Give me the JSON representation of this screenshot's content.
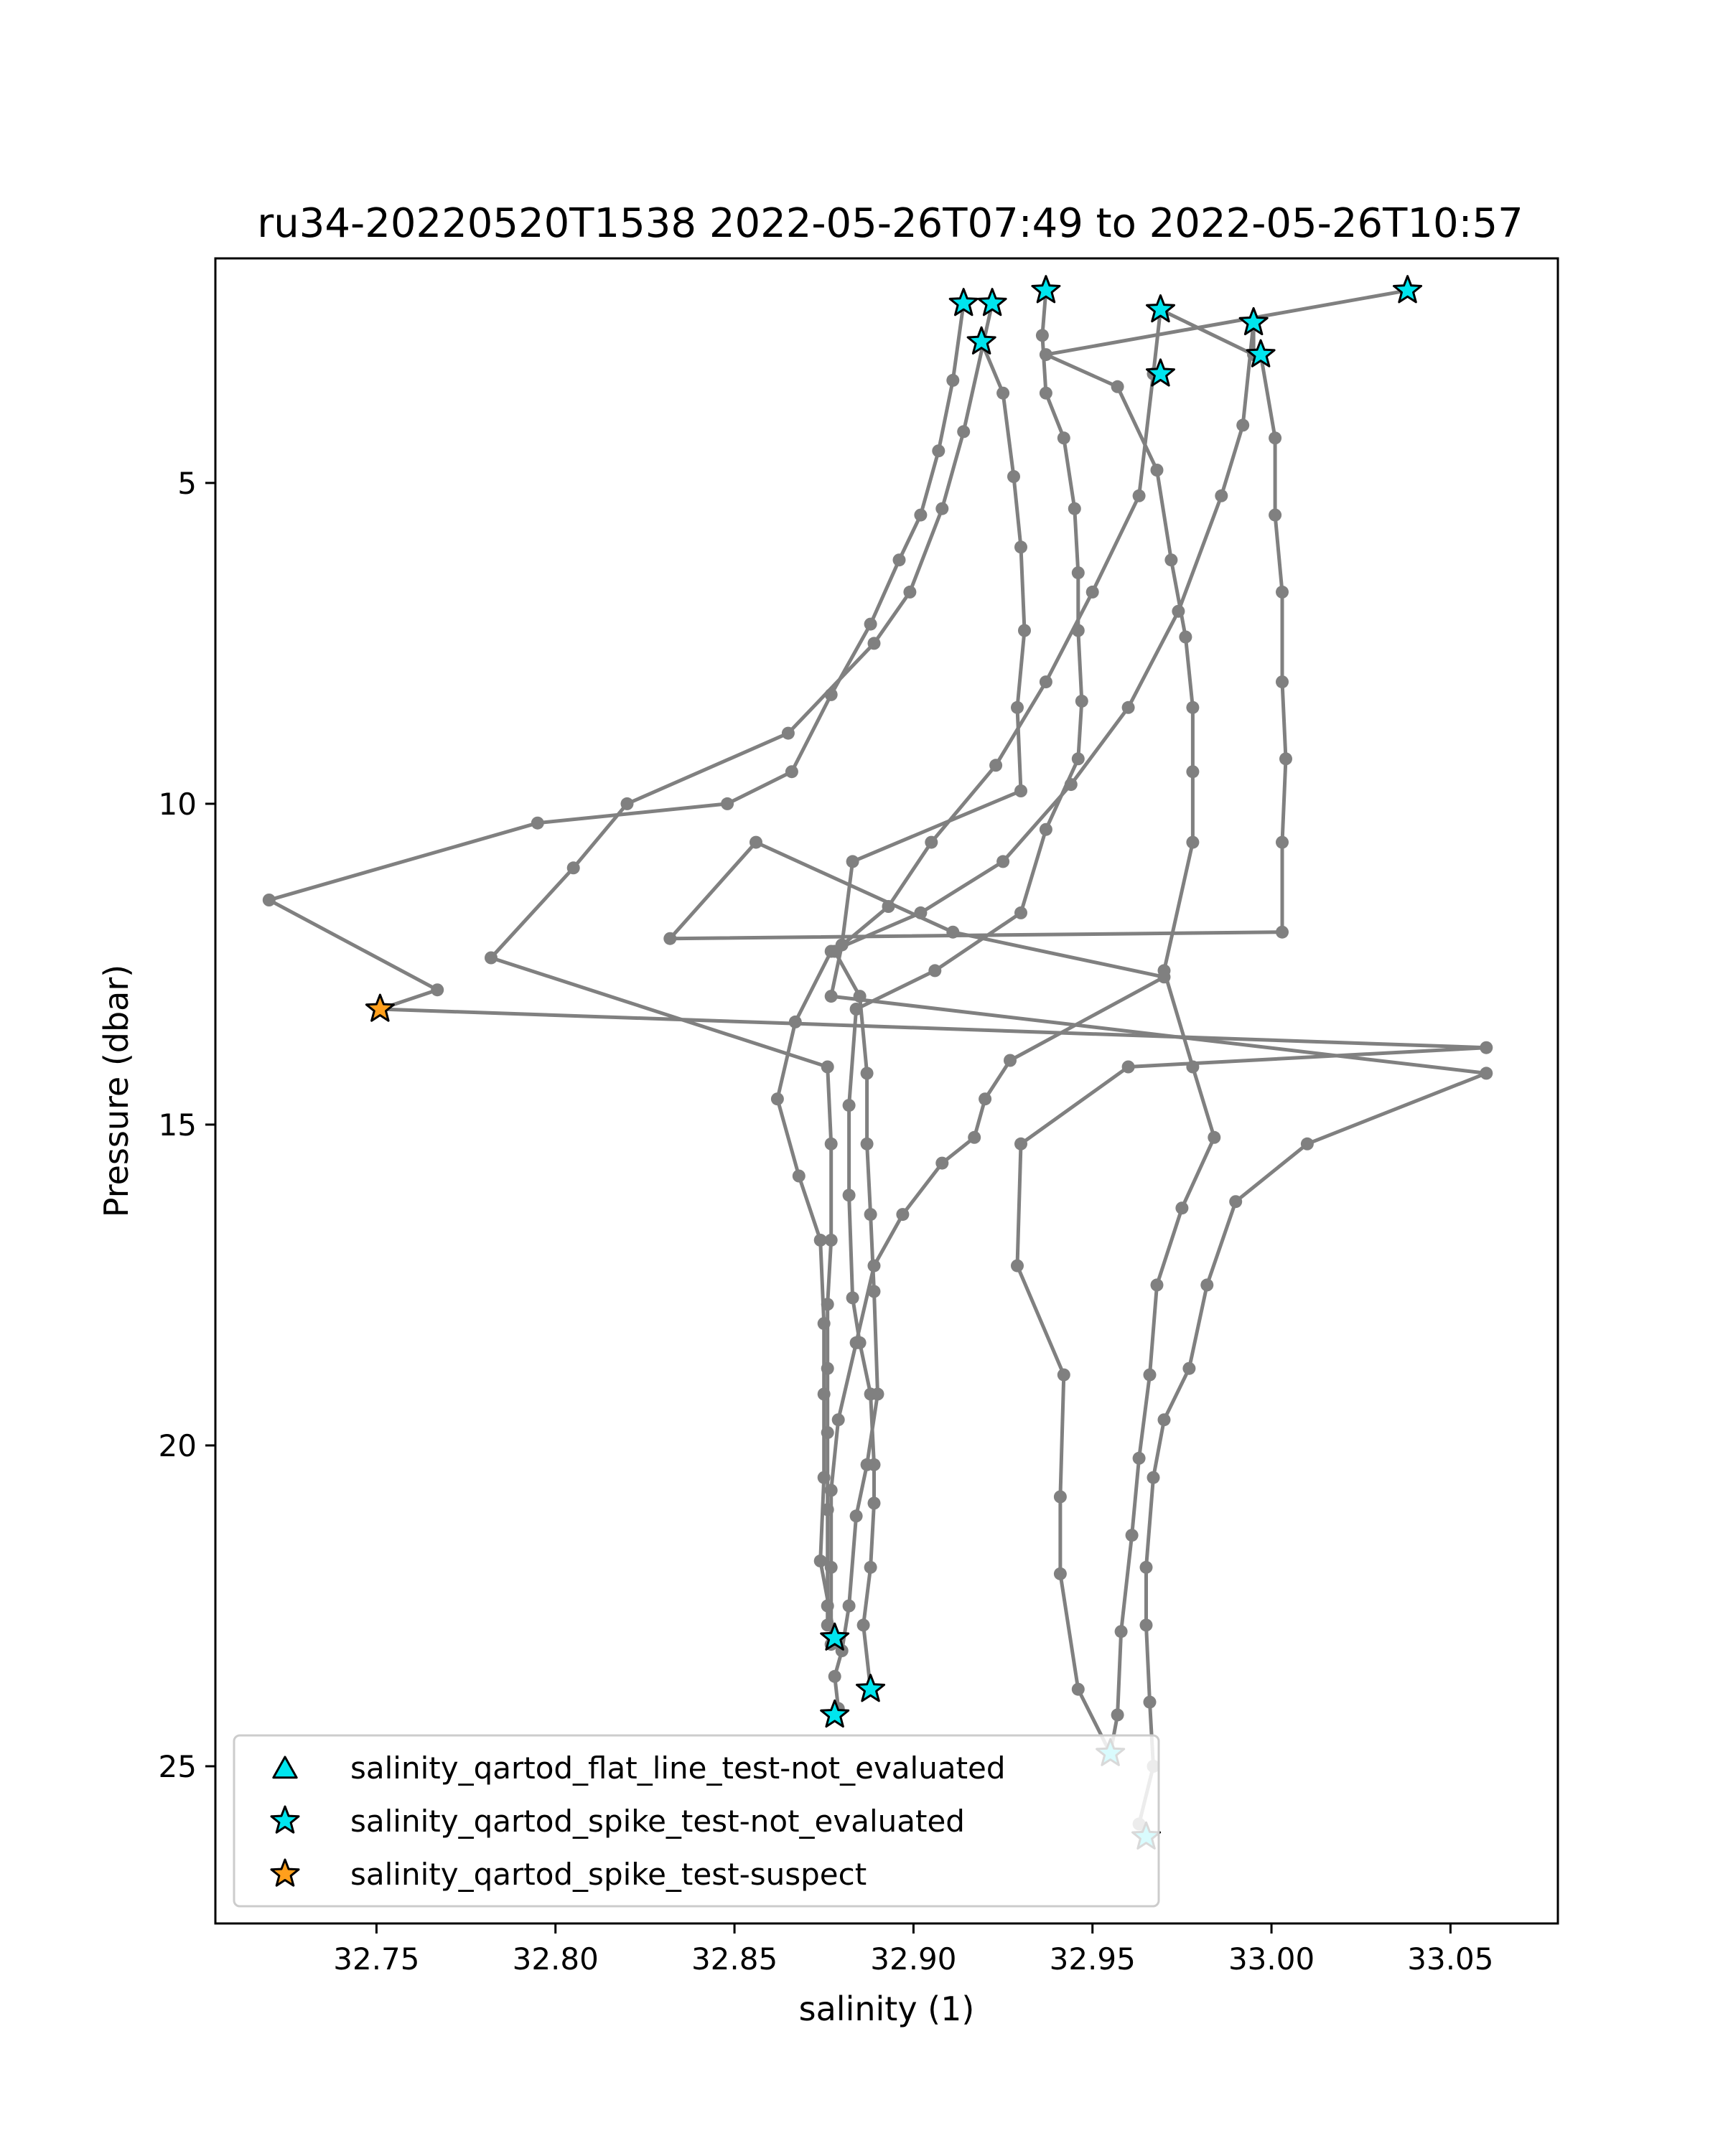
{
  "chart_data": {
    "type": "scatter",
    "title": "ru34-20220520T1538 2022-05-26T07:49 to 2022-05-26T10:57",
    "xlabel": "salinity (1)",
    "ylabel": "Pressure (dbar)",
    "xlim": [
      32.705,
      33.08
    ],
    "ylim": [
      27.45,
      1.5
    ],
    "y_inverted": true,
    "grid": false,
    "x_ticks": [
      {
        "value": 32.75,
        "label": "32.75"
      },
      {
        "value": 32.8,
        "label": "32.80"
      },
      {
        "value": 32.85,
        "label": "32.85"
      },
      {
        "value": 32.9,
        "label": "32.90"
      },
      {
        "value": 32.95,
        "label": "32.95"
      },
      {
        "value": 33.0,
        "label": "33.00"
      },
      {
        "value": 33.05,
        "label": "33.05"
      }
    ],
    "y_ticks": [
      {
        "value": 5,
        "label": "5"
      },
      {
        "value": 10,
        "label": "10"
      },
      {
        "value": 15,
        "label": "15"
      },
      {
        "value": 20,
        "label": "20"
      },
      {
        "value": 25,
        "label": "25"
      }
    ],
    "line_color": "#808080",
    "profiles": [
      {
        "points": [
          [
            32.914,
            2.2
          ],
          [
            32.911,
            3.4
          ],
          [
            32.907,
            4.5
          ],
          [
            32.902,
            5.5
          ],
          [
            32.896,
            6.2
          ],
          [
            32.888,
            7.2
          ],
          [
            32.877,
            8.3
          ],
          [
            32.866,
            9.5
          ],
          [
            32.848,
            10.0
          ],
          [
            32.795,
            10.3
          ],
          [
            32.72,
            11.5
          ],
          [
            32.767,
            12.9
          ],
          [
            32.751,
            13.2
          ],
          [
            33.06,
            13.8
          ],
          [
            32.96,
            14.1
          ],
          [
            32.93,
            15.3
          ],
          [
            32.929,
            17.2
          ],
          [
            32.942,
            18.9
          ],
          [
            32.941,
            20.8
          ],
          [
            32.941,
            22.0
          ],
          [
            32.946,
            23.8
          ],
          [
            32.955,
            24.8
          ]
        ]
      },
      {
        "points": [
          [
            32.922,
            2.2
          ],
          [
            32.914,
            4.2
          ],
          [
            32.908,
            5.4
          ],
          [
            32.899,
            6.7
          ],
          [
            32.889,
            7.5
          ],
          [
            32.865,
            8.9
          ],
          [
            32.82,
            10.0
          ],
          [
            32.805,
            11.0
          ],
          [
            32.782,
            12.4
          ],
          [
            32.876,
            14.1
          ],
          [
            32.877,
            15.3
          ],
          [
            32.877,
            16.8
          ],
          [
            32.876,
            17.8
          ],
          [
            32.876,
            18.8
          ],
          [
            32.876,
            19.8
          ],
          [
            32.876,
            21.0
          ],
          [
            32.876,
            22.5
          ],
          [
            32.876,
            22.8
          ],
          [
            32.878,
            23.0
          ]
        ]
      },
      {
        "points": [
          [
            32.919,
            2.8
          ],
          [
            32.925,
            3.6
          ],
          [
            32.928,
            4.9
          ],
          [
            32.93,
            6.0
          ],
          [
            32.931,
            7.3
          ],
          [
            32.929,
            8.5
          ],
          [
            32.93,
            9.8
          ],
          [
            32.883,
            10.9
          ],
          [
            32.88,
            12.2
          ],
          [
            32.877,
            13.0
          ],
          [
            33.06,
            14.2
          ],
          [
            33.01,
            15.3
          ],
          [
            32.99,
            16.2
          ],
          [
            32.982,
            17.5
          ],
          [
            32.977,
            18.8
          ],
          [
            32.97,
            19.6
          ],
          [
            32.967,
            20.5
          ],
          [
            32.965,
            21.9
          ],
          [
            32.965,
            22.8
          ],
          [
            32.966,
            24.0
          ],
          [
            32.967,
            25.0
          ],
          [
            32.963,
            25.9
          ],
          [
            32.965,
            26.1
          ]
        ]
      },
      {
        "points": [
          [
            32.937,
            2.0
          ],
          [
            32.936,
            2.7
          ],
          [
            32.937,
            3.6
          ],
          [
            32.942,
            4.3
          ],
          [
            32.945,
            5.4
          ],
          [
            32.946,
            6.4
          ],
          [
            32.946,
            7.3
          ],
          [
            32.947,
            8.4
          ],
          [
            32.946,
            9.3
          ],
          [
            32.937,
            10.4
          ],
          [
            32.93,
            11.7
          ],
          [
            32.906,
            12.6
          ],
          [
            32.884,
            13.2
          ],
          [
            32.882,
            14.7
          ],
          [
            32.882,
            16.1
          ],
          [
            32.883,
            17.7
          ],
          [
            32.885,
            18.4
          ],
          [
            32.888,
            19.2
          ],
          [
            32.889,
            20.3
          ],
          [
            32.889,
            20.9
          ],
          [
            32.888,
            21.9
          ],
          [
            32.886,
            22.8
          ],
          [
            32.888,
            23.8
          ]
        ]
      },
      {
        "points": [
          [
            32.969,
            2.3
          ],
          [
            32.967,
            3.3
          ],
          [
            32.963,
            5.2
          ],
          [
            32.95,
            6.7
          ],
          [
            32.937,
            8.1
          ],
          [
            32.923,
            9.4
          ],
          [
            32.905,
            10.6
          ],
          [
            32.893,
            11.6
          ],
          [
            32.878,
            12.3
          ],
          [
            32.885,
            13.0
          ],
          [
            32.887,
            14.2
          ],
          [
            32.887,
            15.3
          ],
          [
            32.888,
            16.4
          ],
          [
            32.889,
            17.6
          ],
          [
            32.89,
            19.2
          ],
          [
            32.887,
            20.3
          ],
          [
            32.884,
            21.1
          ],
          [
            32.882,
            22.5
          ],
          [
            32.88,
            23.2
          ],
          [
            32.878,
            23.6
          ],
          [
            32.879,
            24.1
          ]
        ]
      },
      {
        "points": [
          [
            32.997,
            3.0
          ],
          [
            33.001,
            4.3
          ],
          [
            33.001,
            5.5
          ],
          [
            33.003,
            6.7
          ],
          [
            33.003,
            8.1
          ],
          [
            33.004,
            9.3
          ],
          [
            33.003,
            10.6
          ],
          [
            33.003,
            12.0
          ],
          [
            32.832,
            12.1
          ],
          [
            32.856,
            10.6
          ],
          [
            32.911,
            12.0
          ],
          [
            32.97,
            12.7
          ],
          [
            32.927,
            14.0
          ],
          [
            32.92,
            14.6
          ],
          [
            32.917,
            15.2
          ],
          [
            32.908,
            15.6
          ],
          [
            32.897,
            16.4
          ],
          [
            32.889,
            17.2
          ],
          [
            32.884,
            18.4
          ],
          [
            32.879,
            19.6
          ],
          [
            32.877,
            20.7
          ],
          [
            32.877,
            21.9
          ],
          [
            32.877,
            23.1
          ]
        ]
      },
      {
        "points": [
          [
            33.038,
            2.0
          ],
          [
            32.937,
            3.0
          ],
          [
            32.957,
            3.5
          ],
          [
            32.968,
            4.8
          ],
          [
            32.972,
            6.2
          ],
          [
            32.976,
            7.4
          ],
          [
            32.978,
            8.5
          ],
          [
            32.978,
            9.5
          ],
          [
            32.978,
            10.6
          ],
          [
            32.97,
            12.6
          ],
          [
            32.978,
            14.1
          ],
          [
            32.984,
            15.2
          ],
          [
            32.975,
            16.3
          ],
          [
            32.968,
            17.5
          ],
          [
            32.966,
            18.9
          ],
          [
            32.963,
            20.2
          ],
          [
            32.961,
            21.4
          ],
          [
            32.958,
            22.9
          ],
          [
            32.957,
            24.2
          ],
          [
            32.955,
            24.8
          ]
        ]
      },
      {
        "points": [
          [
            32.969,
            2.3
          ],
          [
            32.995,
            3.0
          ],
          [
            32.995,
            2.5
          ],
          [
            32.992,
            4.1
          ],
          [
            32.986,
            5.2
          ],
          [
            32.974,
            7.0
          ],
          [
            32.96,
            8.5
          ],
          [
            32.944,
            9.7
          ],
          [
            32.925,
            10.9
          ],
          [
            32.902,
            11.7
          ],
          [
            32.877,
            12.3
          ],
          [
            32.867,
            13.4
          ],
          [
            32.862,
            14.6
          ],
          [
            32.868,
            15.8
          ],
          [
            32.874,
            16.8
          ],
          [
            32.875,
            18.1
          ],
          [
            32.875,
            19.2
          ],
          [
            32.875,
            20.5
          ],
          [
            32.874,
            21.8
          ],
          [
            32.878,
            23.0
          ]
        ]
      }
    ],
    "flagged_points": [
      {
        "x": 32.914,
        "y": 2.2,
        "series": 1
      },
      {
        "x": 32.922,
        "y": 2.2,
        "series": 1
      },
      {
        "x": 32.937,
        "y": 2.0,
        "series": 1
      },
      {
        "x": 32.969,
        "y": 2.3,
        "series": 1
      },
      {
        "x": 33.038,
        "y": 2.0,
        "series": 1
      },
      {
        "x": 32.919,
        "y": 2.8,
        "series": 1
      },
      {
        "x": 32.995,
        "y": 2.5,
        "series": 1
      },
      {
        "x": 32.969,
        "y": 3.3,
        "series": 1
      },
      {
        "x": 32.997,
        "y": 3.0,
        "series": 1
      },
      {
        "x": 32.751,
        "y": 13.2,
        "series": 2
      },
      {
        "x": 32.878,
        "y": 23.0,
        "series": 1
      },
      {
        "x": 32.888,
        "y": 23.8,
        "series": 1
      },
      {
        "x": 32.878,
        "y": 24.2,
        "series": 1
      },
      {
        "x": 32.955,
        "y": 24.8,
        "series": 1
      },
      {
        "x": 32.965,
        "y": 26.1,
        "series": 1
      }
    ],
    "series": [
      {
        "name": "salinity_qartod_flat_line_test-not_evaluated",
        "marker": "triangle",
        "color": "#00e5ee"
      },
      {
        "name": "salinity_qartod_spike_test-not_evaluated",
        "marker": "star",
        "color": "#00e5ee"
      },
      {
        "name": "salinity_qartod_spike_test-suspect",
        "marker": "star",
        "color": "#ff9f1c"
      }
    ],
    "legend": "lower-left"
  }
}
